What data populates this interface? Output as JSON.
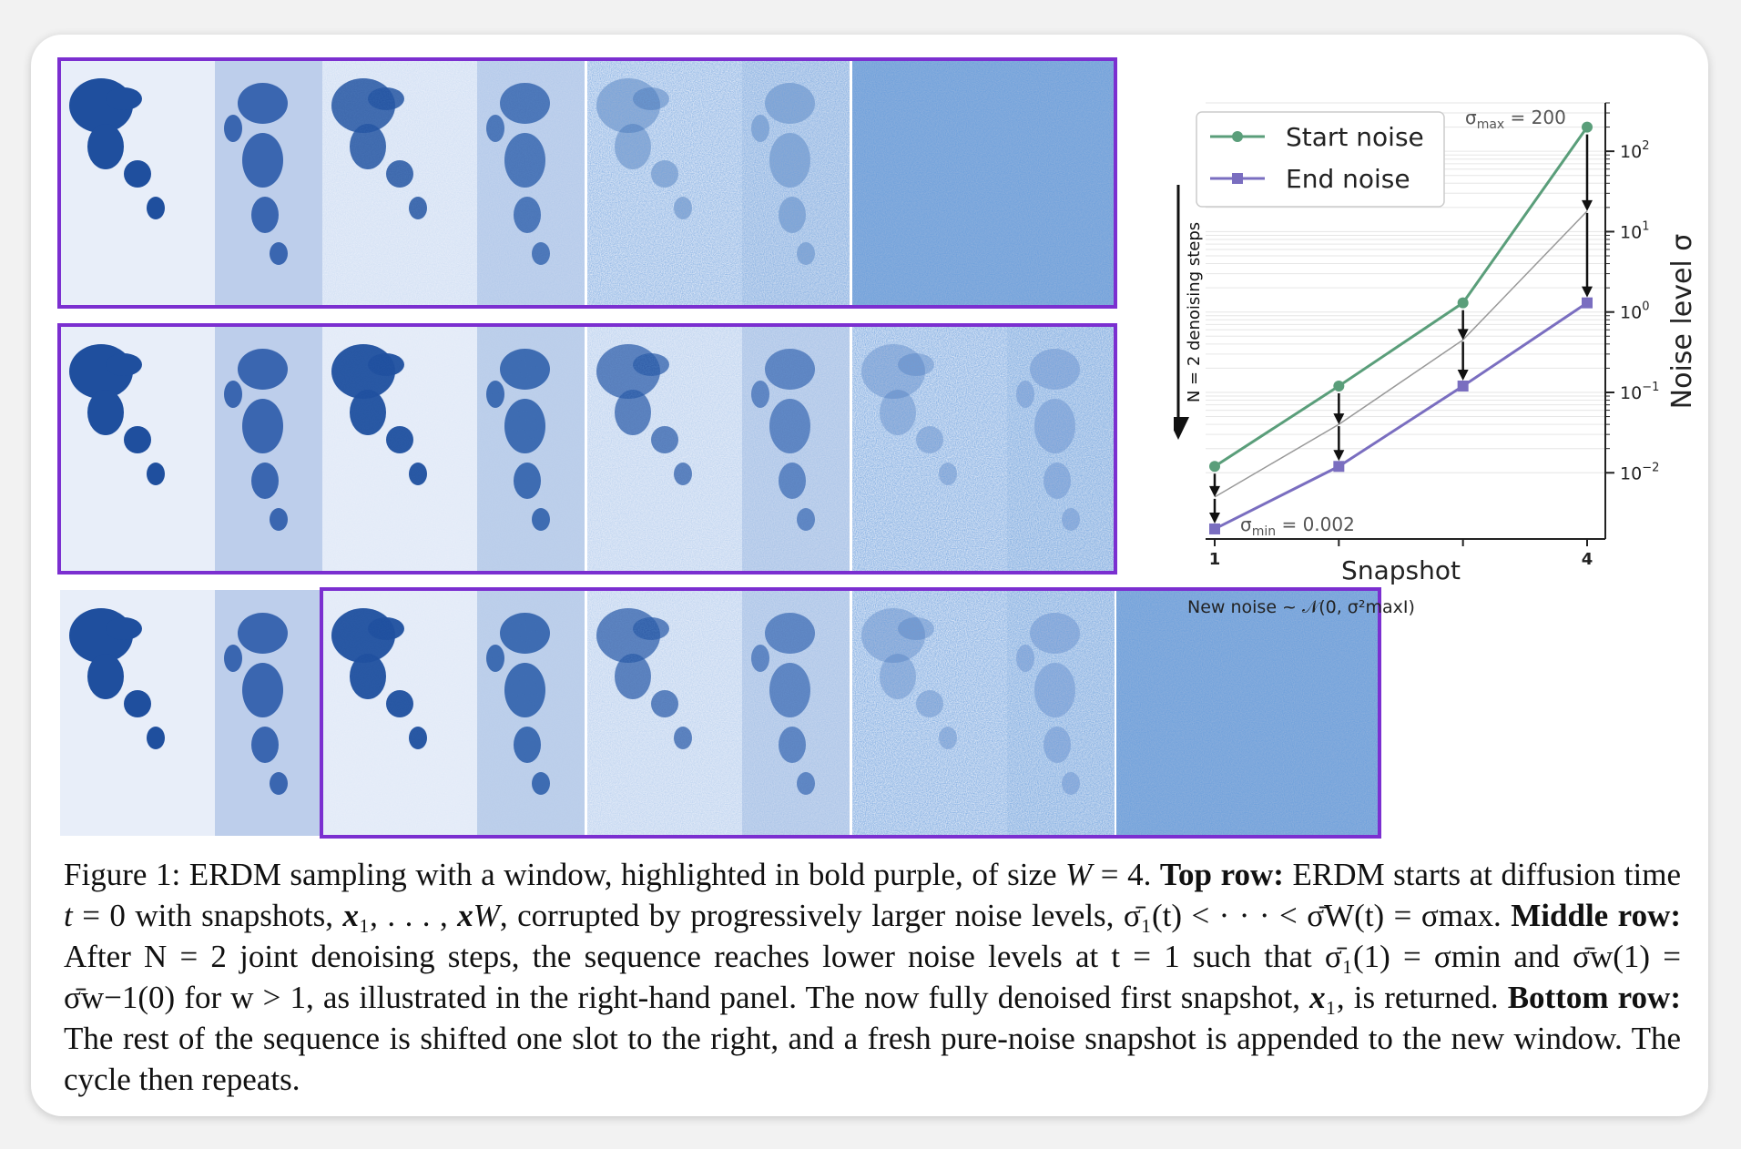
{
  "rows": [
    {
      "name": "top-row",
      "tiles": [
        {
          "kind": "clean",
          "noise": 0.0
        },
        {
          "kind": "map",
          "noise": 0.18
        },
        {
          "kind": "map",
          "noise": 0.75
        },
        {
          "kind": "noise",
          "noise": 1.0
        }
      ]
    },
    {
      "name": "middle-row",
      "tiles": [
        {
          "kind": "clean",
          "noise": 0.0
        },
        {
          "kind": "clean",
          "noise": 0.05
        },
        {
          "kind": "map",
          "noise": 0.35
        },
        {
          "kind": "map",
          "noise": 0.85
        }
      ]
    },
    {
      "name": "bottom-row",
      "tiles": [
        {
          "kind": "clean",
          "noise": 0.0
        },
        {
          "kind": "clean",
          "noise": 0.05
        },
        {
          "kind": "map",
          "noise": 0.35
        },
        {
          "kind": "map",
          "noise": 0.85
        },
        {
          "kind": "noise",
          "noise": 1.0
        }
      ]
    }
  ],
  "colors": {
    "window": "#7b2fd0",
    "start": "#5a9e7a",
    "end": "#7a6ec0",
    "gray": "#999999",
    "arrow": "#111111"
  },
  "chart_data": {
    "type": "line",
    "x": [
      1,
      2,
      3,
      4
    ],
    "xlabel": "Snapshot",
    "xtick_labels": [
      "1",
      "4"
    ],
    "ylabel": "Noise level σ",
    "yscale": "log",
    "ylim": [
      0.0015,
      400
    ],
    "ytick_exponents": [
      "−2",
      "−1",
      "0",
      "1",
      "2"
    ],
    "series": [
      {
        "name": "Start noise",
        "values": [
          0.012,
          0.12,
          1.3,
          200
        ],
        "color": "#5a9e7a",
        "marker": "circle"
      },
      {
        "name": "End noise",
        "values": [
          0.002,
          0.012,
          0.12,
          1.3
        ],
        "color": "#7a6ec0",
        "marker": "square"
      },
      {
        "name": "",
        "values": [
          0.005,
          0.04,
          0.45,
          18
        ],
        "color": "#999999",
        "marker": "none"
      }
    ],
    "annotations": {
      "sigma_max": "= 200",
      "sigma_min": "= 0.002",
      "steps": "N = 2 denoising steps",
      "new_noise": "New noise  ~ 𝒩(0, σ²maxI)"
    },
    "legend_position": "top-left"
  },
  "caption": {
    "p1": "Figure 1: ERDM sampling with a window, highlighted in bold purple, of size ",
    "p2": "W",
    "p3": " = 4. ",
    "b1": "Top row:",
    "p4": " ERDM starts at diffusion time ",
    "p5": "t",
    "p6": " = 0 with snapshots, ",
    "p7": "x",
    "p8": "₁, . . . , ",
    "p9": "x",
    "p10": "W",
    "p11": ", corrupted by progressively larger noise levels, σ̄₁(t) < · · · < σ̄W(t) = σmax. ",
    "b2": "Middle row:",
    "p12": " After N = 2 joint denoising steps, the sequence reaches lower noise levels at t = 1 such that σ̄₁(1) = σmin and σ̄w(1) = σ̄w−1(0) for w > 1, as illustrated in the right-hand panel. The now fully denoised first snapshot, ",
    "p13": "x",
    "p14": "₁, is returned. ",
    "b3": "Bottom row:",
    "p15": " The rest of the sequence is shifted one slot to the right, and a fresh pure-noise snapshot is appended to the new window. The cycle then repeats."
  }
}
